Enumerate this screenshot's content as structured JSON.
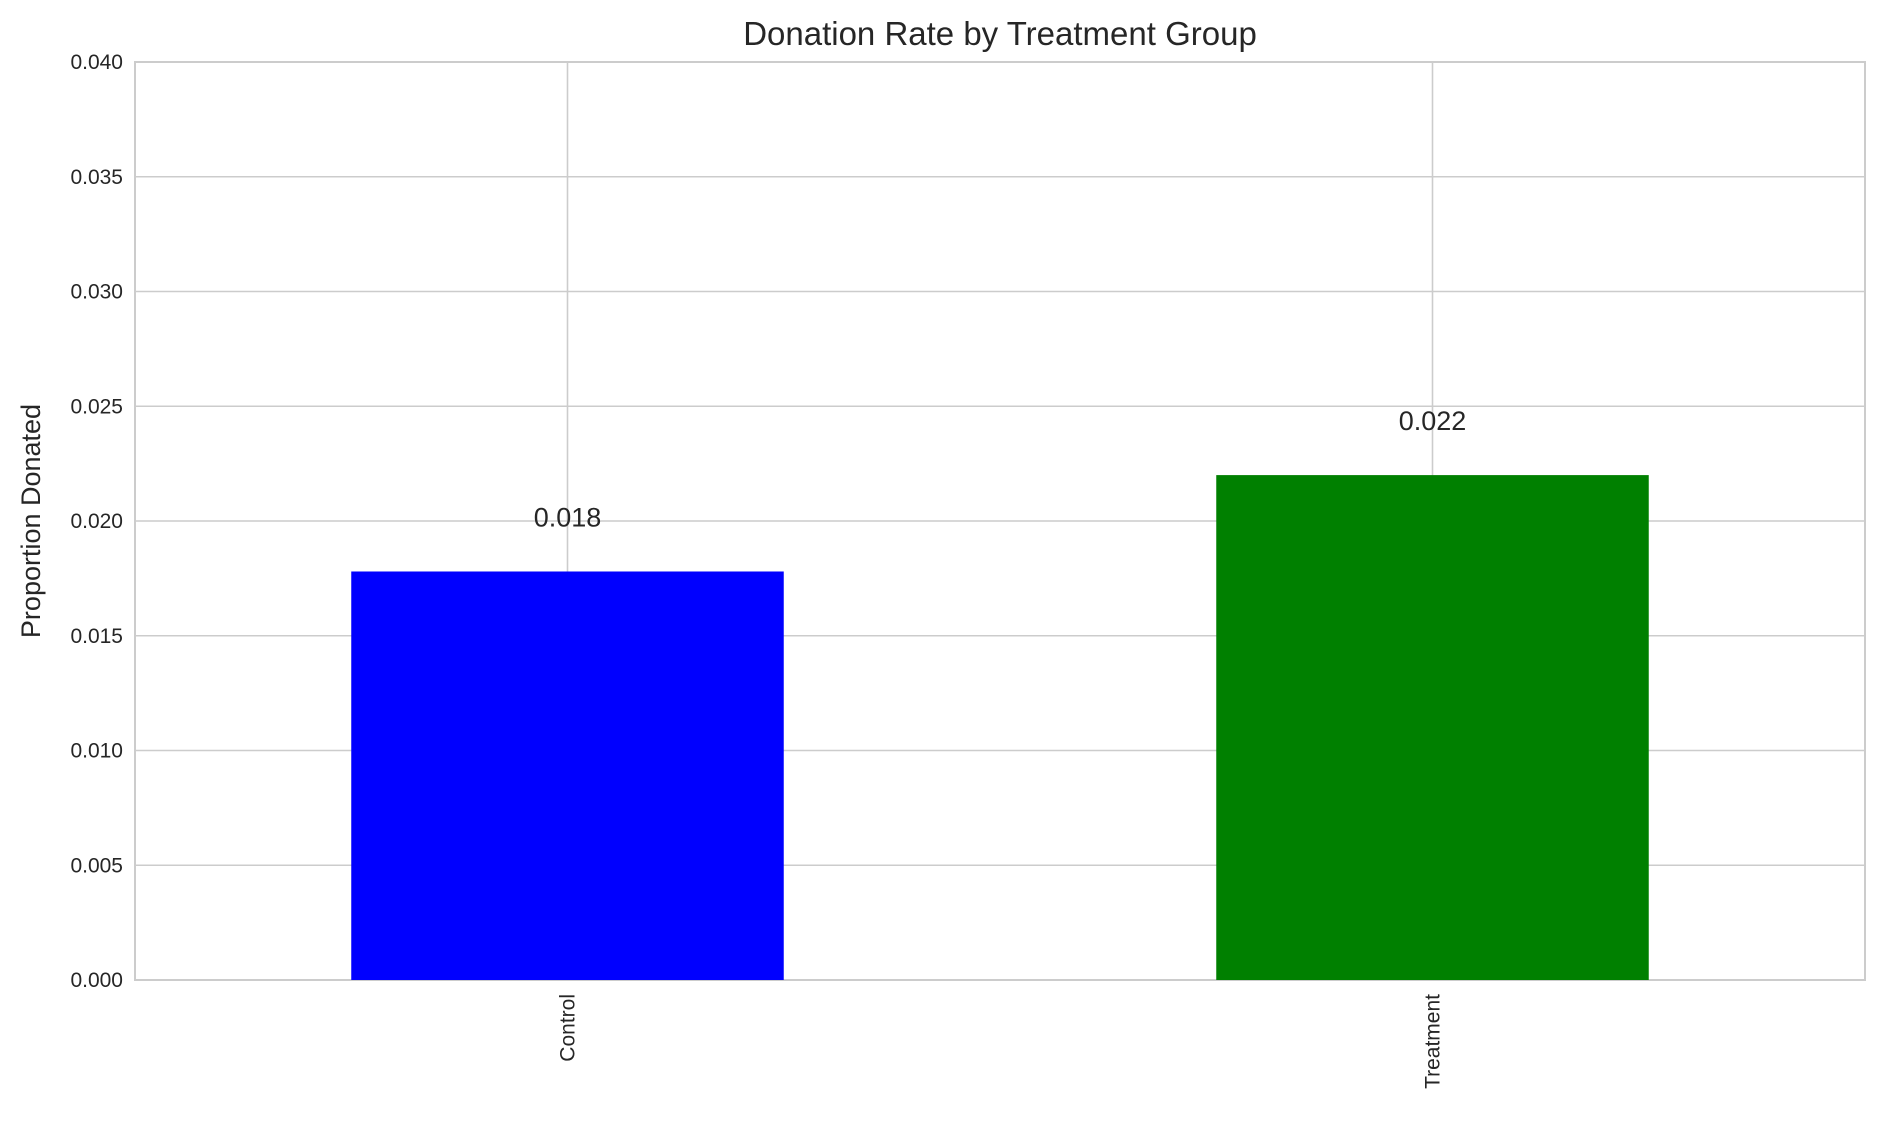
{
  "chart_data": {
    "type": "bar",
    "title": "Donation Rate by Treatment Group",
    "xlabel": "",
    "ylabel": "Proportion Donated",
    "categories": [
      "Control",
      "Treatment"
    ],
    "values": [
      0.0178,
      0.022
    ],
    "data_labels": [
      "0.018",
      "0.022"
    ],
    "bar_colors": [
      "#0000ff",
      "#008000"
    ],
    "ylim": [
      0,
      0.04
    ],
    "yticks": [
      0.0,
      0.005,
      0.01,
      0.015,
      0.02,
      0.025,
      0.03,
      0.035,
      0.04
    ],
    "ytick_labels": [
      "0.000",
      "0.005",
      "0.010",
      "0.015",
      "0.020",
      "0.025",
      "0.030",
      "0.035",
      "0.040"
    ],
    "grid": true,
    "legend": "none"
  }
}
